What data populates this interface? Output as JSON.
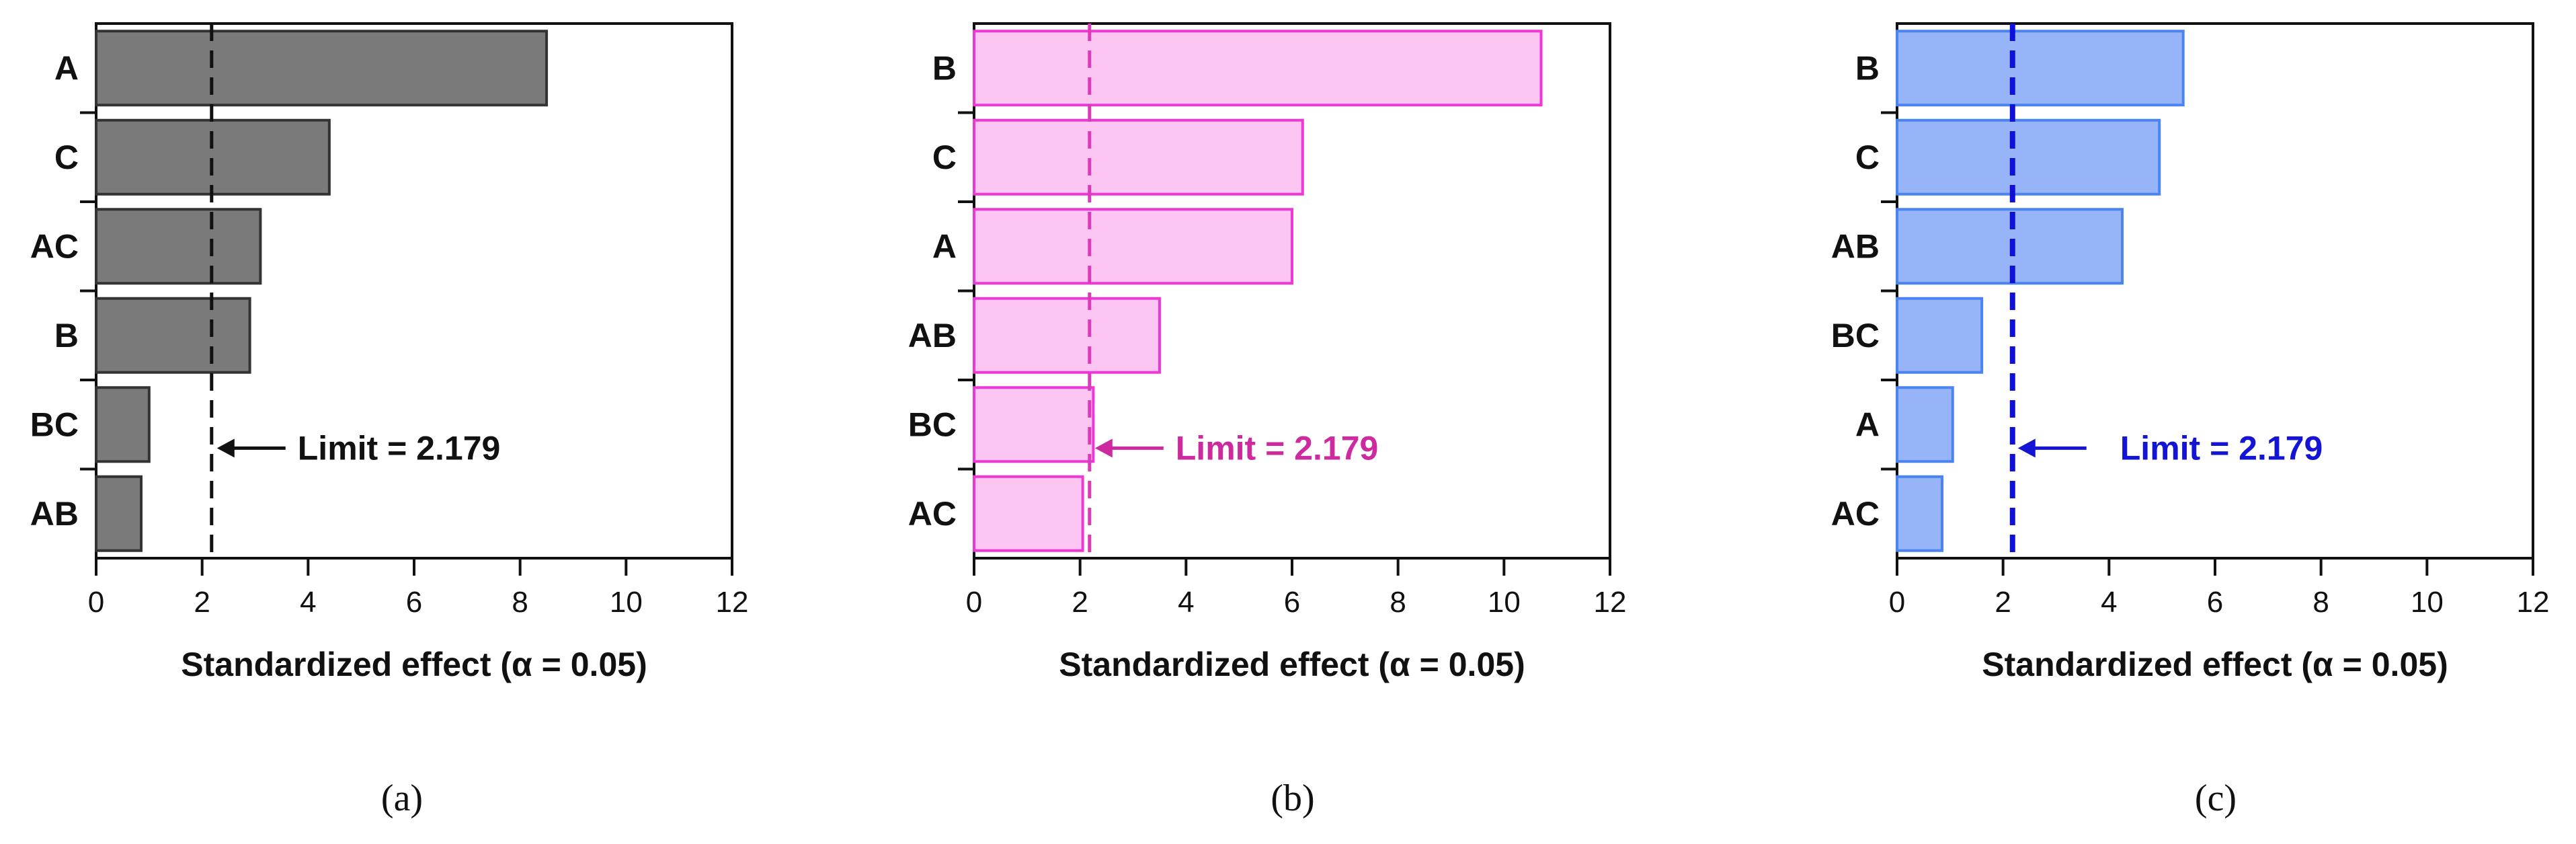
{
  "chart_data": [
    {
      "type": "bar",
      "orientation": "horizontal",
      "panel_label": "(a)",
      "categories": [
        "A",
        "C",
        "AC",
        "B",
        "BC",
        "AB"
      ],
      "values": [
        8.5,
        4.4,
        3.1,
        2.9,
        1.0,
        0.85
      ],
      "xlabel": "Standardized effect (α = 0.05)",
      "xlim": [
        0,
        12
      ],
      "xticks": [
        "0",
        "2",
        "4",
        "6",
        "8",
        "10",
        "12"
      ],
      "limit_value": 2.179,
      "limit_label": "Limit = 2.179",
      "colors": {
        "fill": "#7a7a7a",
        "stroke": "#333333",
        "line": "#111111",
        "label": "#111111"
      },
      "grid": false
    },
    {
      "type": "bar",
      "orientation": "horizontal",
      "panel_label": "(b)",
      "categories": [
        "B",
        "C",
        "A",
        "AB",
        "BC",
        "AC"
      ],
      "values": [
        10.7,
        6.2,
        6.0,
        3.5,
        2.25,
        2.05
      ],
      "xlabel": "Standardized effect (α = 0.05)",
      "xlim": [
        0,
        12
      ],
      "xticks": [
        "0",
        "2",
        "4",
        "6",
        "8",
        "10",
        "12"
      ],
      "limit_value": 2.179,
      "limit_label": "Limit = 2.179",
      "colors": {
        "fill": "#fdc6f2",
        "stroke": "#ee38d6",
        "line": "#d83cb9",
        "label": "#cc2a9e"
      },
      "grid": false
    },
    {
      "type": "bar",
      "orientation": "horizontal",
      "panel_label": "(c)",
      "categories": [
        "B",
        "C",
        "AB",
        "BC",
        "A",
        "AC"
      ],
      "values": [
        5.4,
        4.95,
        4.25,
        1.6,
        1.05,
        0.85
      ],
      "xlabel": "Standardized effect (α = 0.05)",
      "xlim": [
        0,
        12
      ],
      "xticks": [
        "0",
        "2",
        "4",
        "6",
        "8",
        "10",
        "12"
      ],
      "limit_value": 2.179,
      "limit_label": "Limit = 2.179",
      "colors": {
        "fill": "#98b4f8",
        "stroke": "#4a84f0",
        "line": "#1010d8",
        "label": "#1414d4"
      },
      "grid": false
    }
  ]
}
